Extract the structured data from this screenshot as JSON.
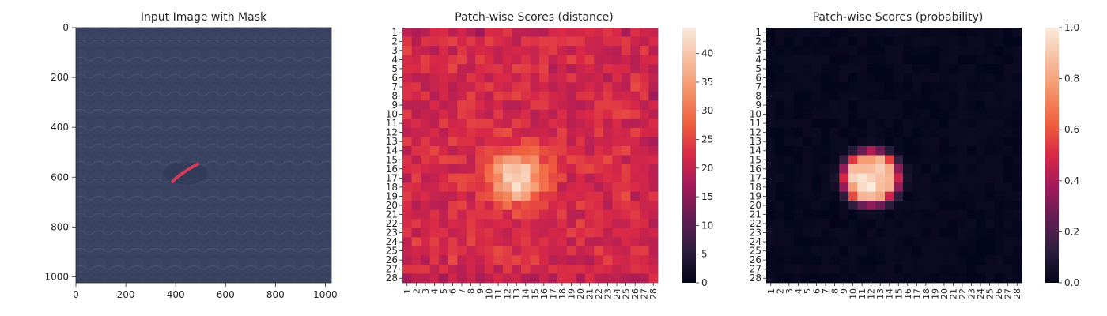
{
  "chart_data": [
    {
      "type": "image",
      "title": "Input Image with Mask",
      "x_ticks": [
        0,
        200,
        400,
        600,
        800,
        1000
      ],
      "y_ticks": [
        0,
        200,
        400,
        600,
        800,
        1000
      ],
      "xlim": [
        0,
        1024
      ],
      "ylim": [
        1024,
        0
      ],
      "background_color": "#3a4462",
      "mask_color": "#d83a5a",
      "mask_polyline": [
        [
          388,
          618
        ],
        [
          400,
          605
        ],
        [
          420,
          590
        ],
        [
          445,
          572
        ],
        [
          470,
          557
        ],
        [
          488,
          548
        ]
      ]
    },
    {
      "type": "heatmap",
      "title": "Patch-wise Scores (distance)",
      "colormap": "rocket",
      "rows": 28,
      "cols": 28,
      "row_labels": [
        "1",
        "2",
        "3",
        "4",
        "5",
        "6",
        "7",
        "8",
        "9",
        "10",
        "11",
        "12",
        "13",
        "14",
        "15",
        "16",
        "17",
        "18",
        "19",
        "20",
        "21",
        "22",
        "23",
        "24",
        "25",
        "26",
        "27",
        "28"
      ],
      "col_labels": [
        "1",
        "2",
        "3",
        "4",
        "5",
        "6",
        "7",
        "8",
        "9",
        "10",
        "11",
        "12",
        "13",
        "14",
        "15",
        "16",
        "17",
        "18",
        "19",
        "20",
        "21",
        "22",
        "23",
        "24",
        "25",
        "26",
        "27",
        "28"
      ],
      "vmin": 0,
      "vmax": 44.5,
      "background_level": 22,
      "hotspot": {
        "center_row": 17,
        "center_col": 13,
        "peak": 44
      },
      "colorbar_ticks": [
        0,
        5,
        10,
        15,
        20,
        25,
        30,
        35,
        40
      ]
    },
    {
      "type": "heatmap",
      "title": "Patch-wise Scores (probability)",
      "colormap": "rocket",
      "rows": 28,
      "cols": 28,
      "row_labels": [
        "1",
        "2",
        "3",
        "4",
        "5",
        "6",
        "7",
        "8",
        "9",
        "10",
        "11",
        "12",
        "13",
        "14",
        "15",
        "16",
        "17",
        "18",
        "19",
        "20",
        "21",
        "22",
        "23",
        "24",
        "25",
        "26",
        "27",
        "28"
      ],
      "col_labels": [
        "1",
        "2",
        "3",
        "4",
        "5",
        "6",
        "7",
        "8",
        "9",
        "10",
        "11",
        "12",
        "13",
        "14",
        "15",
        "16",
        "17",
        "18",
        "19",
        "20",
        "21",
        "22",
        "23",
        "24",
        "25",
        "26",
        "27",
        "28"
      ],
      "vmin": 0.0,
      "vmax": 1.0,
      "background_level": 0.01,
      "hotspot": {
        "center_row": 17,
        "center_col": 12,
        "peak": 1.0
      },
      "colorbar_ticks": [
        "0.0",
        "0.2",
        "0.4",
        "0.6",
        "0.8",
        "1.0"
      ]
    }
  ]
}
